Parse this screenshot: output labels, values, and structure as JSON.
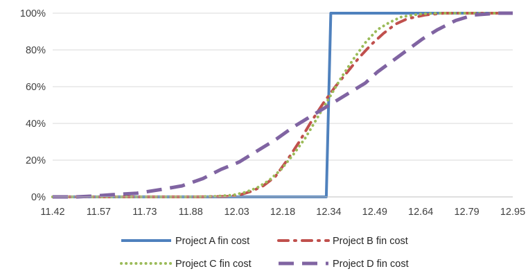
{
  "chart_data": {
    "type": "line",
    "x_ticks": [
      "11.42",
      "11.57",
      "11.73",
      "11.88",
      "12.03",
      "12.18",
      "12.34",
      "12.49",
      "12.64",
      "12.79",
      "12.95"
    ],
    "y_ticks": [
      "0%",
      "20%",
      "40%",
      "60%",
      "80%",
      "100%"
    ],
    "xlim": [
      11.42,
      12.95
    ],
    "ylim": [
      0,
      100
    ],
    "grid": "horizontal",
    "legend_position": "bottom",
    "series": [
      {
        "name": "Project A fin cost",
        "color": "#4f81bd",
        "style": "solid",
        "points": [
          [
            11.42,
            0
          ],
          [
            12.33,
            0
          ],
          [
            12.345,
            100
          ],
          [
            12.95,
            100
          ]
        ]
      },
      {
        "name": "Project B fin cost",
        "color": "#c0504d",
        "style": "dash-dot",
        "points": [
          [
            11.42,
            0
          ],
          [
            11.9,
            0
          ],
          [
            12.0,
            0.3
          ],
          [
            12.04,
            1
          ],
          [
            12.08,
            3
          ],
          [
            12.12,
            6
          ],
          [
            12.16,
            11
          ],
          [
            12.2,
            20
          ],
          [
            12.24,
            30
          ],
          [
            12.28,
            41
          ],
          [
            12.32,
            51
          ],
          [
            12.36,
            60
          ],
          [
            12.4,
            68
          ],
          [
            12.44,
            76
          ],
          [
            12.48,
            83
          ],
          [
            12.52,
            89
          ],
          [
            12.56,
            94
          ],
          [
            12.6,
            97
          ],
          [
            12.66,
            99
          ],
          [
            12.72,
            100
          ],
          [
            12.95,
            100
          ]
        ]
      },
      {
        "name": "Project C fin cost",
        "color": "#9bbb59",
        "style": "dotted",
        "points": [
          [
            11.42,
            0
          ],
          [
            11.88,
            0
          ],
          [
            11.96,
            0.3
          ],
          [
            12.02,
            1
          ],
          [
            12.06,
            2.5
          ],
          [
            12.1,
            5
          ],
          [
            12.14,
            9
          ],
          [
            12.18,
            15
          ],
          [
            12.22,
            23
          ],
          [
            12.26,
            32
          ],
          [
            12.3,
            43
          ],
          [
            12.34,
            54
          ],
          [
            12.38,
            65
          ],
          [
            12.42,
            75
          ],
          [
            12.46,
            84
          ],
          [
            12.5,
            91
          ],
          [
            12.54,
            95
          ],
          [
            12.58,
            98
          ],
          [
            12.64,
            99.5
          ],
          [
            12.7,
            100
          ],
          [
            12.95,
            100
          ]
        ]
      },
      {
        "name": "Project D fin cost",
        "color": "#8064a2",
        "style": "long-dash",
        "points": [
          [
            11.42,
            0
          ],
          [
            11.5,
            0
          ],
          [
            11.56,
            0.5
          ],
          [
            11.62,
            1.2
          ],
          [
            11.7,
            2
          ],
          [
            11.78,
            4
          ],
          [
            11.85,
            6
          ],
          [
            11.92,
            10
          ],
          [
            11.98,
            15
          ],
          [
            12.04,
            19
          ],
          [
            12.1,
            25
          ],
          [
            12.16,
            31
          ],
          [
            12.22,
            38
          ],
          [
            12.28,
            44
          ],
          [
            12.34,
            50
          ],
          [
            12.4,
            56
          ],
          [
            12.46,
            62
          ],
          [
            12.5,
            68
          ],
          [
            12.55,
            74
          ],
          [
            12.6,
            80
          ],
          [
            12.65,
            86
          ],
          [
            12.7,
            91
          ],
          [
            12.76,
            96
          ],
          [
            12.82,
            99
          ],
          [
            12.9,
            100
          ],
          [
            12.95,
            100
          ]
        ]
      }
    ]
  }
}
